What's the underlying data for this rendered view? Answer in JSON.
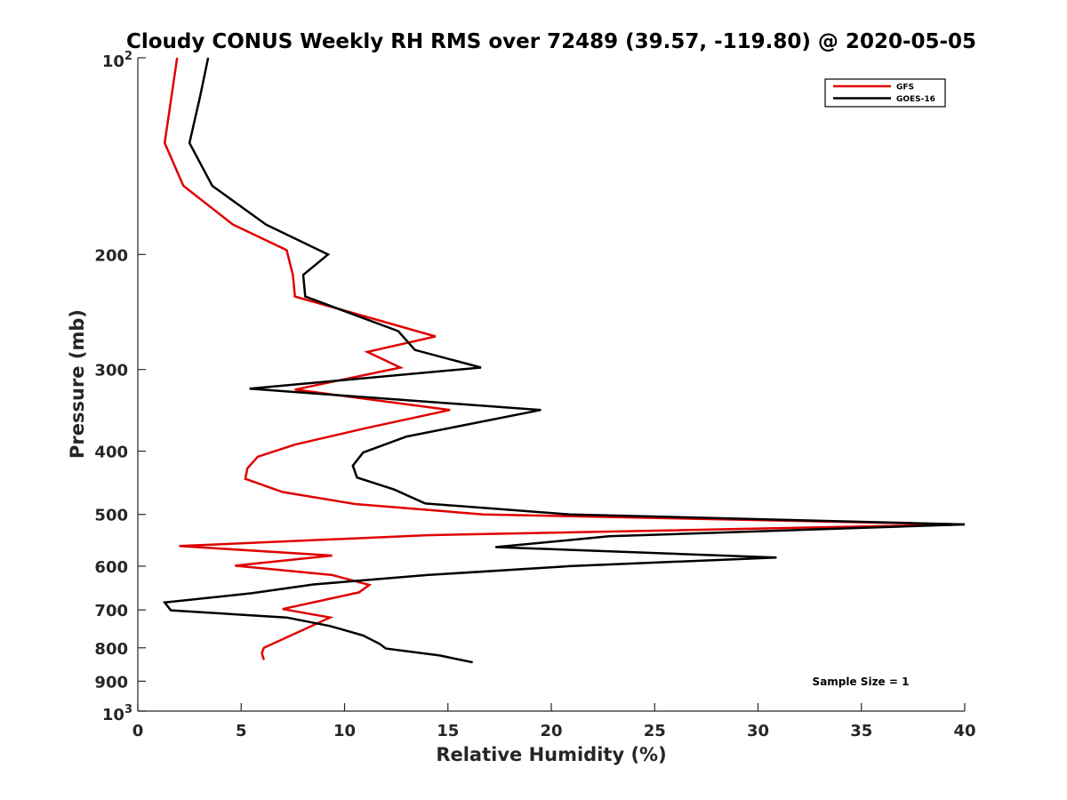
{
  "chart_data": {
    "type": "line",
    "title": "Cloudy CONUS Weekly RH RMS over 72489 (39.57, -119.80) @ 2020-05-05",
    "xlabel": "Relative Humidity (%)",
    "ylabel": "Pressure (mb)",
    "xlim": [
      0,
      40
    ],
    "ylim": [
      100,
      1000
    ],
    "y_scale": "log",
    "y_reversed": true,
    "grid": false,
    "legend_position": "top-right",
    "x_ticks": [
      "0",
      "5",
      "10",
      "15",
      "20",
      "25",
      "30",
      "35",
      "40"
    ],
    "x_tick_values": [
      0,
      5,
      10,
      15,
      20,
      25,
      30,
      35,
      40
    ],
    "y_ticks": [
      {
        "value": 100,
        "base": "10",
        "exp": "2"
      },
      {
        "value": 200,
        "label": "200"
      },
      {
        "value": 300,
        "label": "300"
      },
      {
        "value": 400,
        "label": "400"
      },
      {
        "value": 500,
        "label": "500"
      },
      {
        "value": 600,
        "label": "600"
      },
      {
        "value": 700,
        "label": "700"
      },
      {
        "value": 800,
        "label": "800"
      },
      {
        "value": 900,
        "label": "900"
      },
      {
        "value": 1000,
        "base": "10",
        "exp": "3"
      }
    ],
    "annotation": "Sample Size = 1",
    "series": [
      {
        "name": "GFS",
        "color": "#e00000",
        "points": [
          [
            1.9,
            100
          ],
          [
            1.3,
            135
          ],
          [
            2.2,
            157
          ],
          [
            4.6,
            180
          ],
          [
            7.2,
            197
          ],
          [
            7.5,
            215
          ],
          [
            7.6,
            232
          ],
          [
            14.4,
            267
          ],
          [
            11.1,
            282
          ],
          [
            12.7,
            298
          ],
          [
            7.6,
            322
          ],
          [
            15.1,
            346
          ],
          [
            11.0,
            369
          ],
          [
            7.6,
            391
          ],
          [
            5.8,
            408
          ],
          [
            5.3,
            425
          ],
          [
            5.2,
            441
          ],
          [
            7.0,
            462
          ],
          [
            10.5,
            482
          ],
          [
            16.7,
            500
          ],
          [
            40.0,
            518
          ],
          [
            14.0,
            538
          ],
          [
            2.0,
            559
          ],
          [
            9.4,
            578
          ],
          [
            4.7,
            599
          ],
          [
            9.4,
            619
          ],
          [
            11.2,
            641
          ],
          [
            10.7,
            658
          ],
          [
            7.0,
            698
          ],
          [
            9.3,
            719
          ],
          [
            6.1,
            800
          ],
          [
            6.0,
            815
          ],
          [
            6.1,
            835
          ]
        ]
      },
      {
        "name": "GOES-16",
        "color": "#000000",
        "points": [
          [
            3.4,
            100
          ],
          [
            3.0,
            115
          ],
          [
            2.5,
            135
          ],
          [
            3.6,
            157
          ],
          [
            6.2,
            180
          ],
          [
            9.2,
            200
          ],
          [
            8.0,
            215
          ],
          [
            8.1,
            232
          ],
          [
            12.6,
            262
          ],
          [
            13.4,
            280
          ],
          [
            16.6,
            298
          ],
          [
            5.4,
            321
          ],
          [
            19.5,
            346
          ],
          [
            13.0,
            380
          ],
          [
            10.9,
            402
          ],
          [
            10.4,
            421
          ],
          [
            10.6,
            439
          ],
          [
            12.4,
            458
          ],
          [
            13.9,
            481
          ],
          [
            20.9,
            500
          ],
          [
            40.0,
            518
          ],
          [
            22.8,
            540
          ],
          [
            17.3,
            561
          ],
          [
            30.9,
            582
          ],
          [
            20.9,
            600
          ],
          [
            14.0,
            619
          ],
          [
            8.5,
            640
          ],
          [
            5.5,
            660
          ],
          [
            1.3,
            682
          ],
          [
            1.6,
            701
          ],
          [
            7.2,
            719
          ],
          [
            9.3,
            741
          ],
          [
            10.9,
            766
          ],
          [
            11.7,
            789
          ],
          [
            12.0,
            802
          ],
          [
            14.6,
            822
          ],
          [
            16.2,
            842
          ]
        ]
      }
    ]
  }
}
